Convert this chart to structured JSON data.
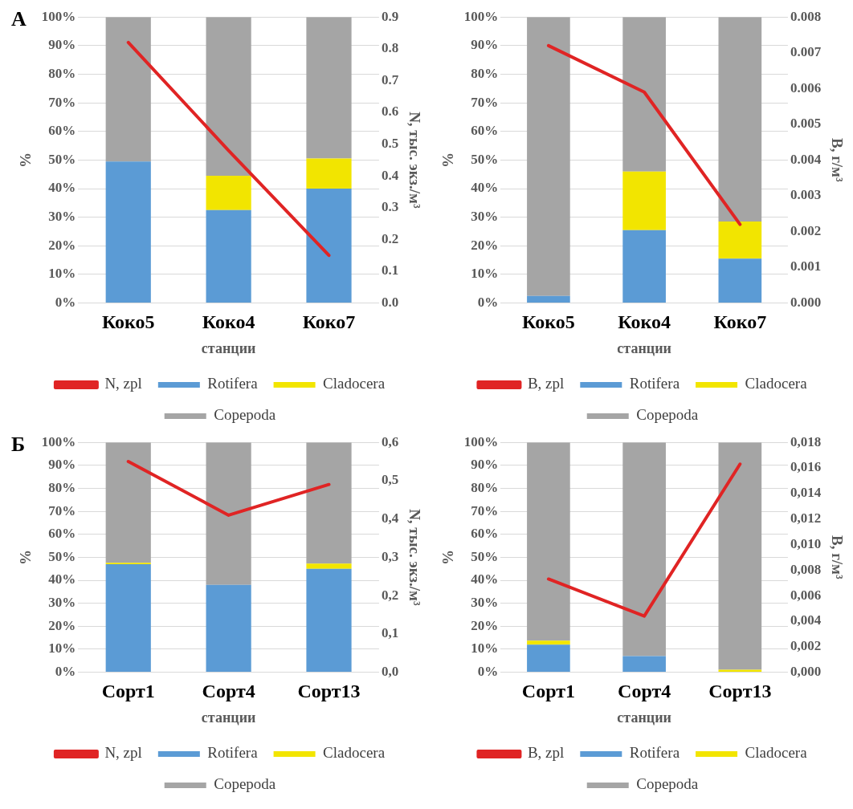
{
  "chart_data": [
    {
      "type": "bar",
      "stacked": true,
      "annotations": [
        "А"
      ],
      "categories": [
        "Коко5",
        "Коко4",
        "Коко7"
      ],
      "xlabel": "станции",
      "ylabel": "%",
      "y2label": "N, тыс. экз./м³",
      "ylim": [
        0,
        100
      ],
      "yticks": [
        {
          "value": 0,
          "label": "0%"
        },
        {
          "value": 10,
          "label": "10%"
        },
        {
          "value": 20,
          "label": "20%"
        },
        {
          "value": 30,
          "label": "30%"
        },
        {
          "value": 40,
          "label": "40%"
        },
        {
          "value": 50,
          "label": "50%"
        },
        {
          "value": 60,
          "label": "60%"
        },
        {
          "value": 70,
          "label": "70%"
        },
        {
          "value": 80,
          "label": "80%"
        },
        {
          "value": 90,
          "label": "90%"
        },
        {
          "value": 100,
          "label": "100%"
        }
      ],
      "y2lim": [
        0,
        0.9
      ],
      "y2ticks": [
        {
          "value": 0,
          "label": "0.0"
        },
        0.1,
        0.2,
        0.3,
        0.4,
        0.5,
        0.6,
        0.7,
        0.8,
        0.9
      ],
      "grid": "y",
      "legend": "bottom",
      "marker": "none",
      "series": [
        {
          "name": "Rotifera",
          "color": "#5b9bd5",
          "values": [
            49.5,
            32.5,
            40
          ]
        },
        {
          "name": "Cladocera",
          "color": "#f2e500",
          "values": [
            0,
            12,
            10.5
          ]
        },
        {
          "name": "Copepoda",
          "color": "#a5a5a5",
          "values": [
            50.5,
            55.5,
            49.5
          ]
        },
        {
          "name": "N, zpl",
          "type": "line",
          "axis": "y2",
          "color": "#e02424",
          "values": [
            0.82,
            0.48,
            0.15
          ]
        }
      ]
    },
    {
      "type": "bar",
      "stacked": true,
      "categories": [
        "Коко5",
        "Коко4",
        "Коко7"
      ],
      "xlabel": "станции",
      "ylabel": "%",
      "y2label": "B, г/м³",
      "ylim": [
        0,
        100
      ],
      "yticks": [
        {
          "value": 0,
          "label": "0%"
        },
        {
          "value": 10,
          "label": "10%"
        },
        {
          "value": 20,
          "label": "20%"
        },
        {
          "value": 30,
          "label": "30%"
        },
        {
          "value": 40,
          "label": "40%"
        },
        {
          "value": 50,
          "label": "50%"
        },
        {
          "value": 60,
          "label": "60%"
        },
        {
          "value": 70,
          "label": "70%"
        },
        {
          "value": 80,
          "label": "80%"
        },
        {
          "value": 90,
          "label": "90%"
        },
        {
          "value": 100,
          "label": "100%"
        }
      ],
      "y2lim": [
        0,
        0.008
      ],
      "y2ticks": [
        {
          "value": 0,
          "label": "0.000"
        },
        0.001,
        0.002,
        0.003,
        0.004,
        0.005,
        0.006,
        0.007,
        0.008
      ],
      "grid": "y",
      "legend": "bottom",
      "marker": "none",
      "series": [
        {
          "name": "Rotifera",
          "color": "#5b9bd5",
          "values": [
            2.5,
            25.5,
            15.5
          ]
        },
        {
          "name": "Cladocera",
          "color": "#f2e500",
          "values": [
            0,
            20.5,
            13
          ]
        },
        {
          "name": "Copepoda",
          "color": "#a5a5a5",
          "values": [
            97.5,
            54,
            71.5
          ]
        },
        {
          "name": "B, zpl",
          "type": "line",
          "axis": "y2",
          "color": "#e02424",
          "values": [
            0.0072,
            0.0059,
            0.0022
          ]
        }
      ]
    },
    {
      "type": "bar",
      "stacked": true,
      "annotations": [
        "Б"
      ],
      "categories": [
        "Сорт1",
        "Сорт4",
        "Сорт13"
      ],
      "xlabel": "станции",
      "ylabel": "%",
      "y2label": "N, тыс. экз./м³",
      "ylim": [
        0,
        100
      ],
      "yticks": [
        {
          "value": 0,
          "label": "0%"
        },
        {
          "value": 10,
          "label": "10%"
        },
        {
          "value": 20,
          "label": "20%"
        },
        {
          "value": 30,
          "label": "30%"
        },
        {
          "value": 40,
          "label": "40%"
        },
        {
          "value": 50,
          "label": "50%"
        },
        {
          "value": 60,
          "label": "60%"
        },
        {
          "value": 70,
          "label": "70%"
        },
        {
          "value": 80,
          "label": "80%"
        },
        {
          "value": 90,
          "label": "90%"
        },
        {
          "value": 100,
          "label": "100%"
        }
      ],
      "y2lim": [
        0,
        0.6
      ],
      "y2ticks": [
        {
          "value": 0,
          "label": "0,0"
        },
        {
          "value": 0.1,
          "label": "0,1"
        },
        {
          "value": 0.2,
          "label": "0,2"
        },
        {
          "value": 0.3,
          "label": "0,3"
        },
        {
          "value": 0.4,
          "label": "0,4"
        },
        {
          "value": 0.5,
          "label": "0,5"
        },
        {
          "value": 0.6,
          "label": "0,6"
        }
      ],
      "grid": "y",
      "legend": "bottom",
      "marker": "none",
      "series": [
        {
          "name": "Rotifera",
          "color": "#5b9bd5",
          "values": [
            47,
            38,
            45
          ]
        },
        {
          "name": "Cladocera",
          "color": "#f2e500",
          "values": [
            0.6,
            0,
            2.3
          ]
        },
        {
          "name": "Copepoda",
          "color": "#a5a5a5",
          "values": [
            52.4,
            62,
            52.7
          ]
        },
        {
          "name": "N, zpl",
          "type": "line",
          "axis": "y2",
          "color": "#e02424",
          "values": [
            0.55,
            0.41,
            0.49
          ]
        }
      ]
    },
    {
      "type": "bar",
      "stacked": true,
      "categories": [
        "Сорт1",
        "Сорт4",
        "Сорт13"
      ],
      "xlabel": "станции",
      "ylabel": "%",
      "y2label": "B, г/м³",
      "ylim": [
        0,
        100
      ],
      "yticks": [
        {
          "value": 0,
          "label": "0%"
        },
        {
          "value": 10,
          "label": "10%"
        },
        {
          "value": 20,
          "label": "20%"
        },
        {
          "value": 30,
          "label": "30%"
        },
        {
          "value": 40,
          "label": "40%"
        },
        {
          "value": 50,
          "label": "50%"
        },
        {
          "value": 60,
          "label": "60%"
        },
        {
          "value": 70,
          "label": "70%"
        },
        {
          "value": 80,
          "label": "80%"
        },
        {
          "value": 90,
          "label": "90%"
        },
        {
          "value": 100,
          "label": "100%"
        }
      ],
      "y2lim": [
        0,
        0.018
      ],
      "y2ticks": [
        {
          "value": 0,
          "label": "0,000"
        },
        {
          "value": 0.002,
          "label": "0,002"
        },
        {
          "value": 0.004,
          "label": "0,004"
        },
        {
          "value": 0.006,
          "label": "0,006"
        },
        {
          "value": 0.008,
          "label": "0,008"
        },
        {
          "value": 0.01,
          "label": "0,010"
        },
        {
          "value": 0.012,
          "label": "0,012"
        },
        {
          "value": 0.014,
          "label": "0,014"
        },
        {
          "value": 0.016,
          "label": "0,016"
        },
        {
          "value": 0.018,
          "label": "0,018"
        }
      ],
      "grid": "y",
      "legend": "bottom",
      "marker": "none",
      "series": [
        {
          "name": "Rotifera",
          "color": "#5b9bd5",
          "values": [
            12,
            7,
            0
          ]
        },
        {
          "name": "Cladocera",
          "color": "#f2e500",
          "values": [
            1.7,
            0,
            1.1
          ]
        },
        {
          "name": "Copepoda",
          "color": "#a5a5a5",
          "values": [
            86.3,
            93,
            98.9
          ]
        },
        {
          "name": "B, zpl",
          "type": "line",
          "axis": "y2",
          "color": "#e02424",
          "values": [
            0.0073,
            0.0044,
            0.0163
          ]
        }
      ]
    }
  ]
}
